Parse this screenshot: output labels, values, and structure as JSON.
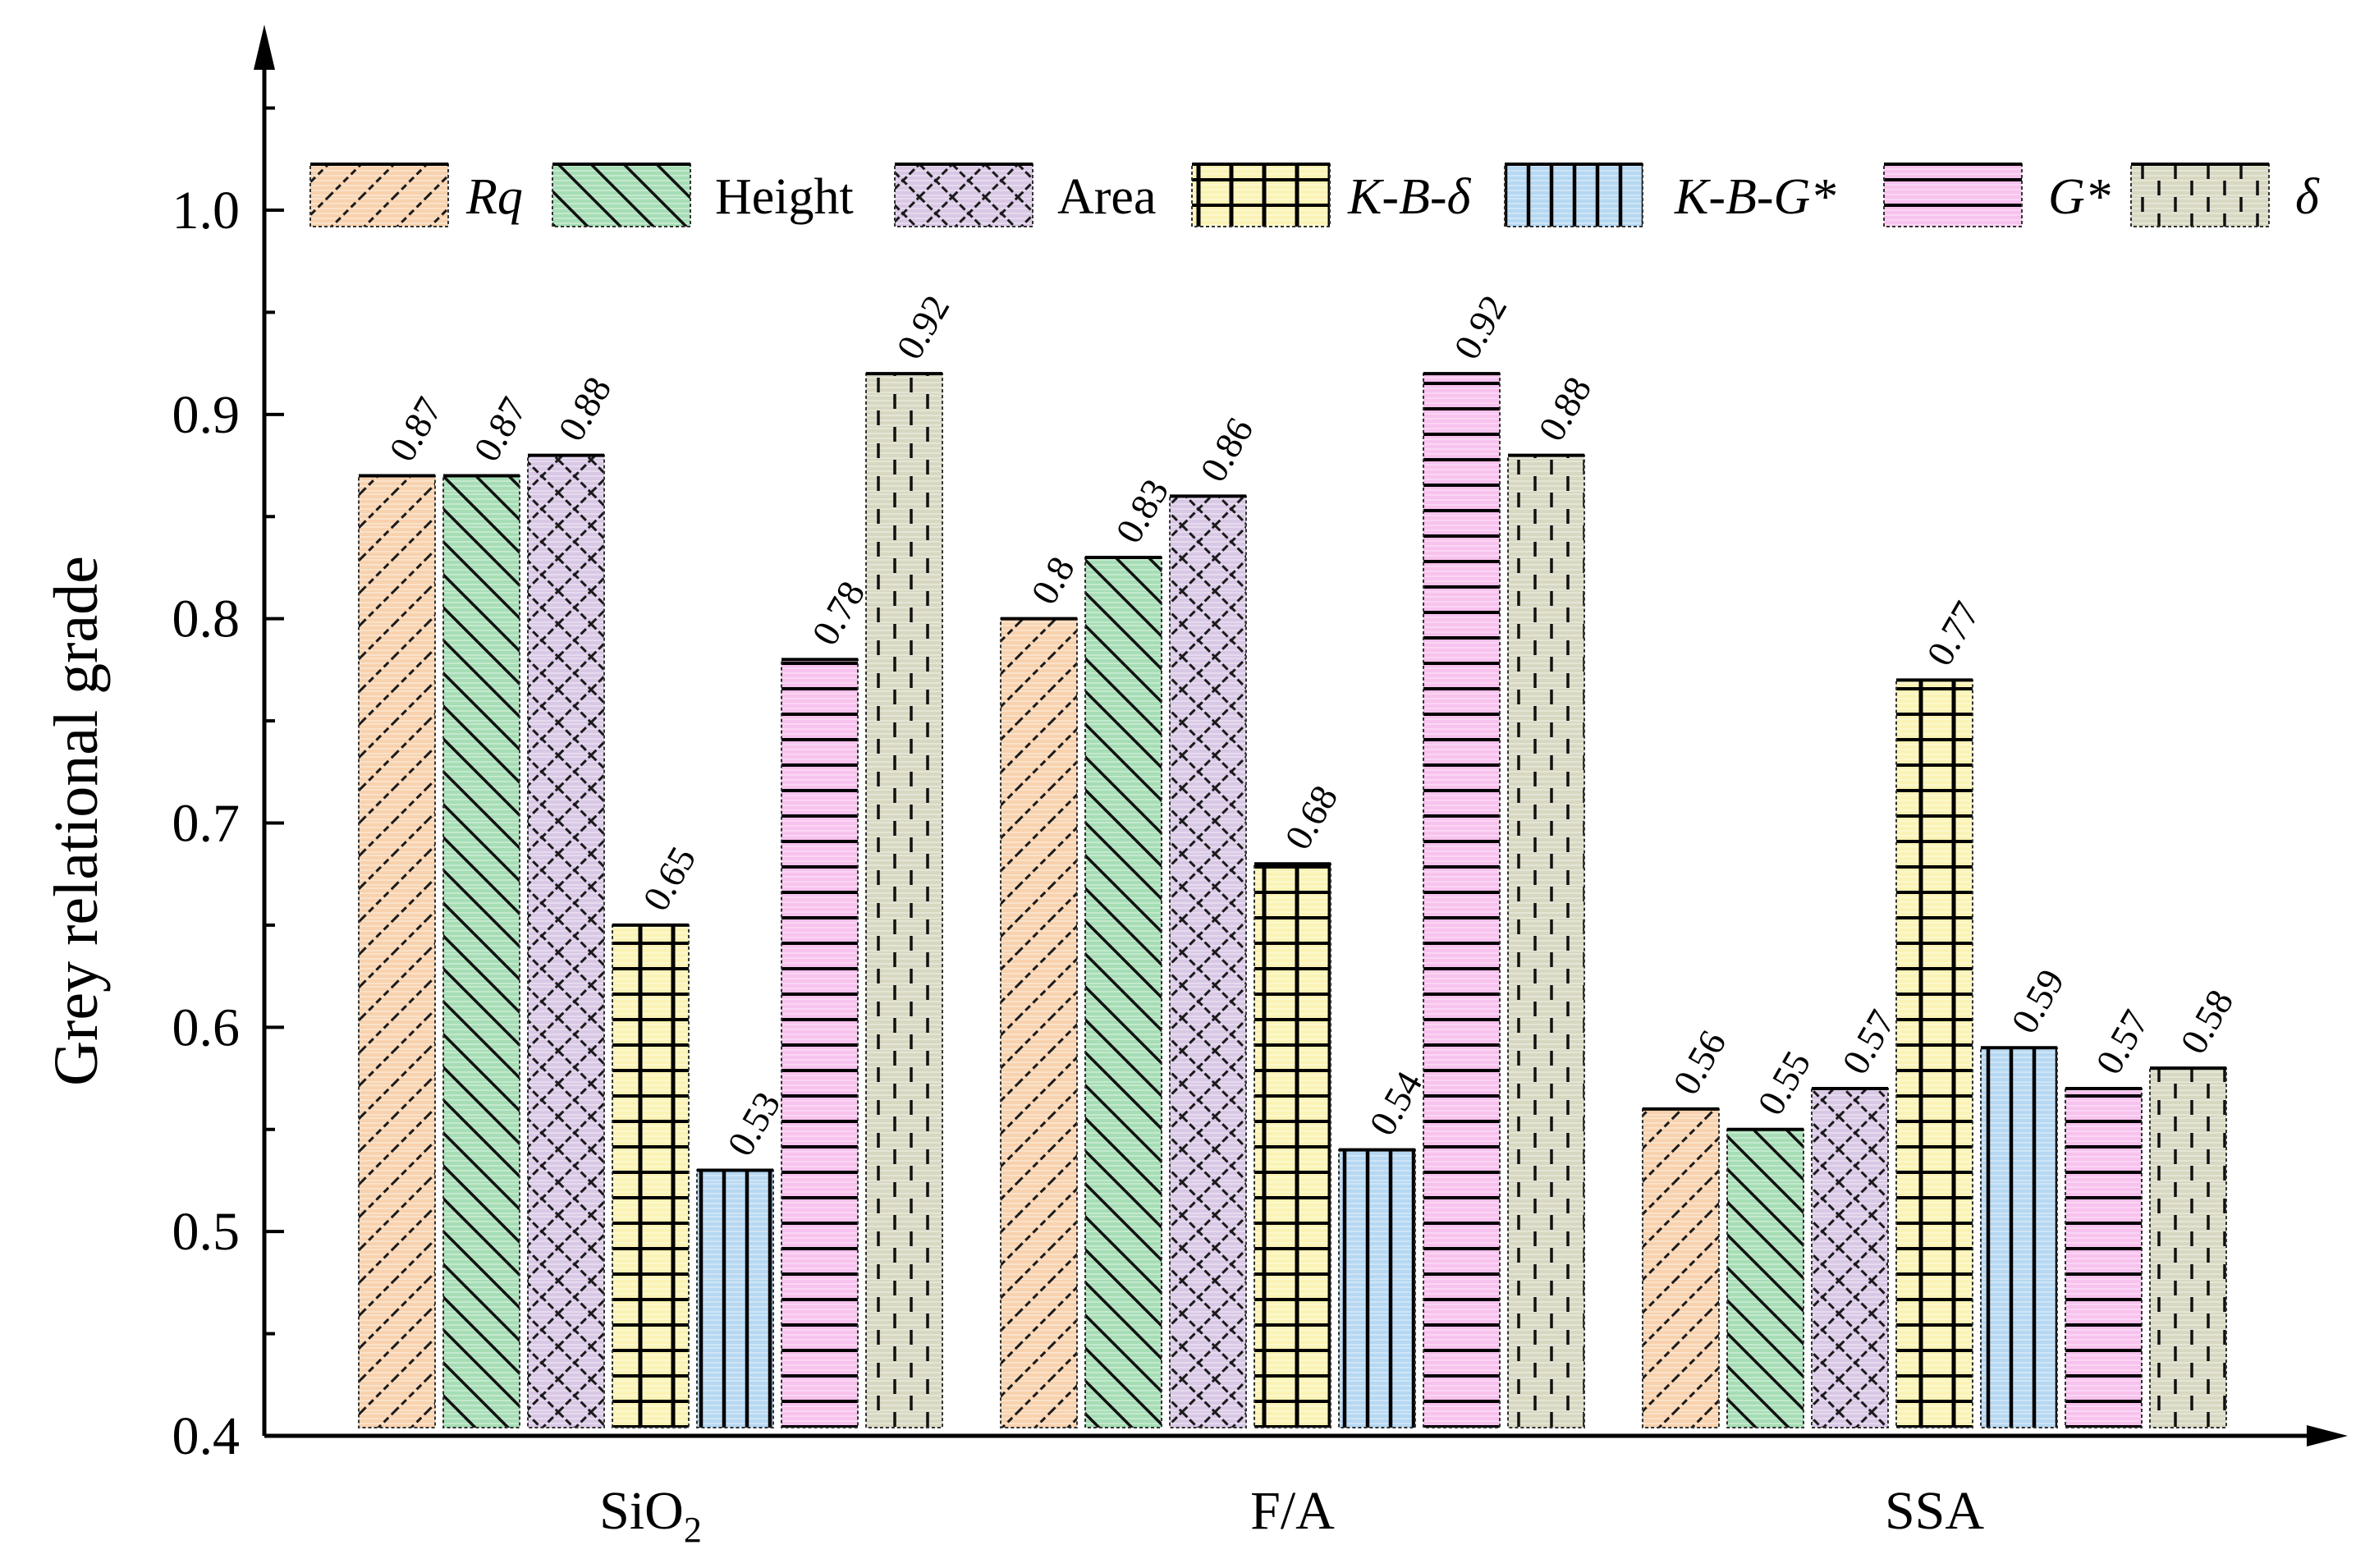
{
  "chart_data": {
    "type": "bar",
    "title": "",
    "xlabel": "",
    "ylabel": "Grey relational grade",
    "ylim": [
      0.4,
      1.05
    ],
    "yticks": [
      "0.4",
      "0.5",
      "0.6",
      "0.7",
      "0.8",
      "0.9",
      "1.0"
    ],
    "categories": [
      {
        "base": "SiO",
        "sub": "2"
      },
      {
        "base": "F/A",
        "sub": ""
      },
      {
        "base": "SSA",
        "sub": ""
      }
    ],
    "series": [
      {
        "name": "Rq",
        "italic": true,
        "color": "#F8D2AE",
        "pattern": "diag-up",
        "values": [
          0.87,
          0.8,
          0.56
        ],
        "labels": [
          "0.87",
          "0.8",
          "0.56"
        ]
      },
      {
        "name": "Height",
        "italic": false,
        "color": "#A6DDB5",
        "pattern": "diag-down",
        "values": [
          0.87,
          0.83,
          0.55
        ],
        "labels": [
          "0.87",
          "0.83",
          "0.55"
        ]
      },
      {
        "name": "Area",
        "italic": false,
        "color": "#D9C8E5",
        "pattern": "cross",
        "values": [
          0.88,
          0.86,
          0.57
        ],
        "labels": [
          "0.88",
          "0.86",
          "0.57"
        ]
      },
      {
        "name": "K-B-δ",
        "italic": true,
        "color": "#FAF3B5",
        "pattern": "grid",
        "values": [
          0.65,
          0.68,
          0.77
        ],
        "labels": [
          "0.65",
          "0.68",
          "0.77"
        ]
      },
      {
        "name": "K-B-G*",
        "italic": true,
        "color": "#B6D8F2",
        "pattern": "vert",
        "values": [
          0.53,
          0.54,
          0.59
        ],
        "labels": [
          "0.53",
          "0.54",
          "0.59"
        ]
      },
      {
        "name": "G*",
        "italic": true,
        "color": "#F8C2EE",
        "pattern": "horiz",
        "values": [
          0.78,
          0.92,
          0.57
        ],
        "labels": [
          "0.78",
          "0.92",
          "0.57"
        ]
      },
      {
        "name": "δ",
        "italic": true,
        "color": "#D8D8C2",
        "pattern": "dash-vert",
        "values": [
          0.92,
          0.88,
          0.58
        ],
        "labels": [
          "0.92",
          "0.88",
          "0.58"
        ]
      }
    ],
    "legend": "top, inside plot"
  }
}
